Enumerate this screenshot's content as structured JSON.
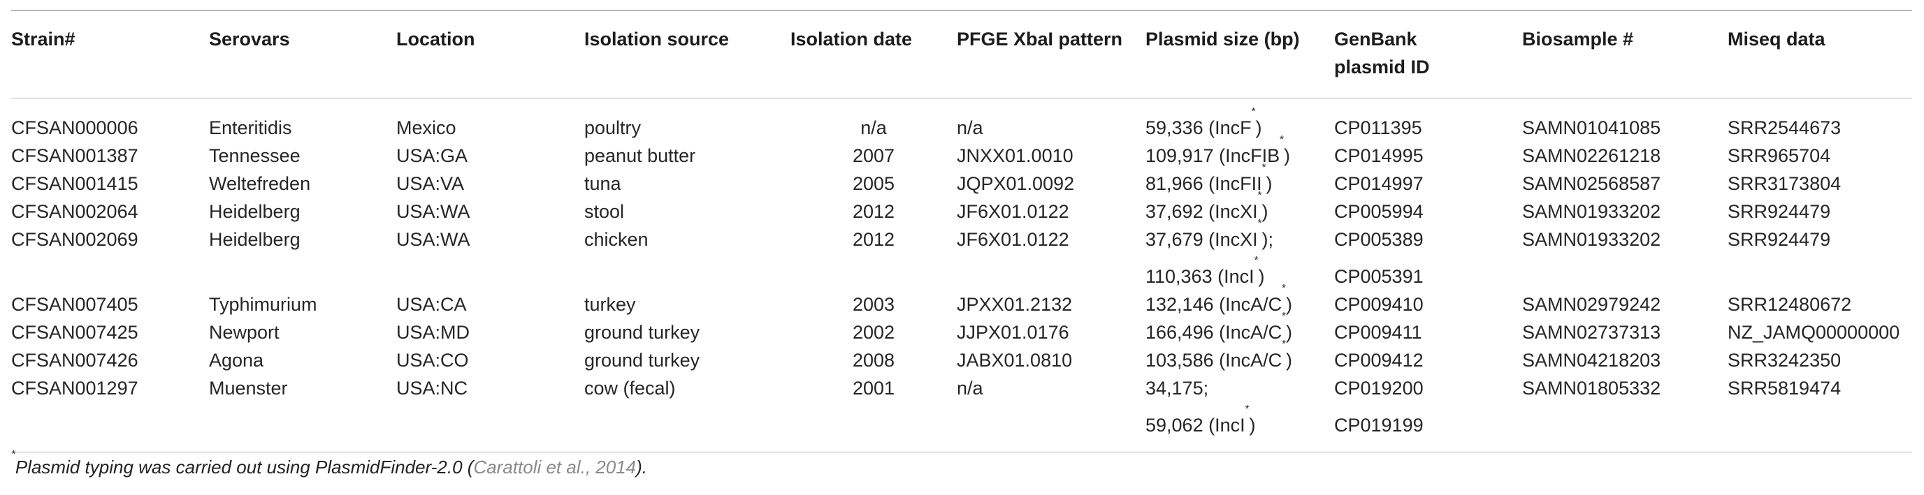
{
  "table": {
    "headers": [
      "Strain#",
      "Serovars",
      "Location",
      "Isolation source",
      "Isolation date",
      "PFGE XbaI pattern",
      "Plasmid size (bp)",
      "GenBank plasmid ID",
      "Biosample #",
      "Miseq data"
    ],
    "rows": [
      {
        "strain": "CFSAN000006",
        "serovar": "Enteritidis",
        "location": "Mexico",
        "source": "poultry",
        "date": "n/a",
        "pfge": "n/a",
        "plasmid": "59,336 (IncF",
        "plasmid_sup": "*",
        "plasmid_tail": ")",
        "genbank": "CP011395",
        "biosample": "SAMN01041085",
        "miseq": "SRR2544673"
      },
      {
        "strain": "CFSAN001387",
        "serovar": "Tennessee",
        "location": "USA:GA",
        "source": "peanut butter",
        "date": "2007",
        "pfge": "JNXX01.0010",
        "plasmid": "109,917 (IncFIB",
        "plasmid_sup": "*",
        "plasmid_tail": ")",
        "genbank": "CP014995",
        "biosample": "SAMN02261218",
        "miseq": "SRR965704"
      },
      {
        "strain": "CFSAN001415",
        "serovar": "Weltefreden",
        "location": "USA:VA",
        "source": "tuna",
        "date": "2005",
        "pfge": "JQPX01.0092",
        "plasmid": "81,966 (IncFII",
        "plasmid_sup": "*",
        "plasmid_tail": ")",
        "genbank": "CP014997",
        "biosample": "SAMN02568587",
        "miseq": "SRR3173804"
      },
      {
        "strain": "CFSAN002064",
        "serovar": "Heidelberg",
        "location": "USA:WA",
        "source": "stool",
        "date": "2012",
        "pfge": "JF6X01.0122",
        "plasmid": "37,692 (IncXI",
        "plasmid_sup": "*",
        "plasmid_tail": ")",
        "genbank": "CP005994",
        "biosample": "SAMN01933202",
        "miseq": "SRR924479"
      },
      {
        "strain": "CFSAN002069",
        "serovar": "Heidelberg",
        "location": "USA:WA",
        "source": "chicken",
        "date": "2012",
        "pfge": "JF6X01.0122",
        "plasmid": "37,679 (IncXI",
        "plasmid_sup": "*",
        "plasmid_tail": ");",
        "genbank": "CP005389",
        "biosample": "SAMN01933202",
        "miseq": "SRR924479"
      },
      {
        "strain": "",
        "serovar": "",
        "location": "",
        "source": "",
        "date": "",
        "pfge": "",
        "plasmid": "110,363 (IncI",
        "plasmid_sup": "*",
        "plasmid_tail": ")",
        "genbank": "CP005391",
        "biosample": "",
        "miseq": ""
      },
      {
        "strain": "CFSAN007405",
        "serovar": "Typhimurium",
        "location": "USA:CA",
        "source": "turkey",
        "date": "2003",
        "pfge": "JPXX01.2132",
        "plasmid": "132,146 (IncA/C",
        "plasmid_sup": "*",
        "plasmid_tail": ")",
        "genbank": "CP009410",
        "biosample": "SAMN02979242",
        "miseq": "SRR12480672"
      },
      {
        "strain": "CFSAN007425",
        "serovar": "Newport",
        "location": "USA:MD",
        "source": "ground turkey",
        "date": "2002",
        "pfge": "JJPX01.0176",
        "plasmid": "166,496 (IncA/C",
        "plasmid_sup": "*",
        "plasmid_tail": ")",
        "genbank": "CP009411",
        "biosample": "SAMN02737313",
        "miseq": "NZ_JAMQ00000000"
      },
      {
        "strain": "CFSAN007426",
        "serovar": "Agona",
        "location": "USA:CO",
        "source": "ground turkey",
        "date": "2008",
        "pfge": "JABX01.0810",
        "plasmid": "103,586 (IncA/C",
        "plasmid_sup": "*",
        "plasmid_tail": ")",
        "genbank": "CP009412",
        "biosample": "SAMN04218203",
        "miseq": "SRR3242350"
      },
      {
        "strain": "CFSAN001297",
        "serovar": "Muenster",
        "location": "USA:NC",
        "source": "cow (fecal)",
        "date": "2001",
        "pfge": "n/a",
        "plasmid": "34,175;",
        "plasmid_sup": "",
        "plasmid_tail": "",
        "genbank": "CP019200",
        "biosample": "SAMN01805332",
        "miseq": "SRR5819474"
      },
      {
        "strain": "",
        "serovar": "",
        "location": "",
        "source": "",
        "date": "",
        "pfge": "",
        "plasmid": "59,062 (IncI",
        "plasmid_sup": "*",
        "plasmid_tail": ")",
        "genbank": "CP019199",
        "biosample": "",
        "miseq": ""
      }
    ]
  },
  "footnote": {
    "marker": "*",
    "text": "Plasmid typing was carried out using PlasmidFinder-2.0 (",
    "citation": "Carattoli et al., 2014",
    "end": ")."
  }
}
